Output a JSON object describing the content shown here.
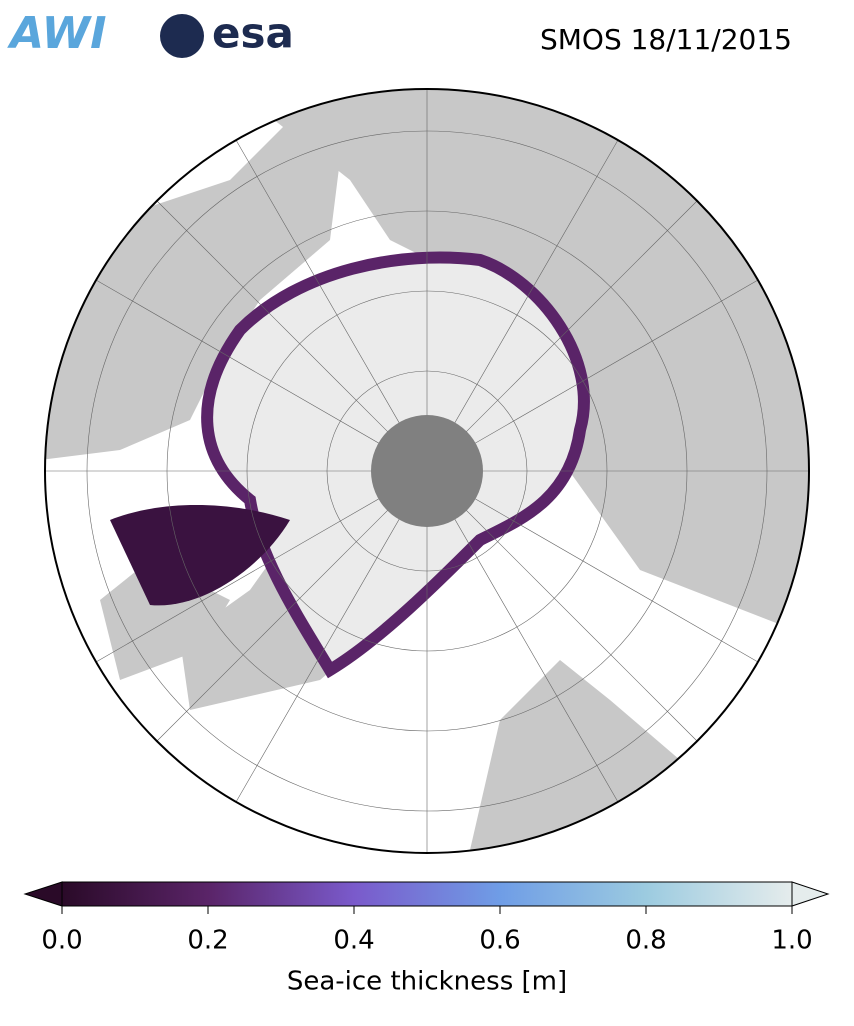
{
  "header": {
    "logos": [
      "AWI",
      "esa"
    ],
    "title": "SMOS 18/11/2015"
  },
  "colorbar": {
    "label": "Sea-ice thickness [m]",
    "lim": [
      0,
      1
    ],
    "ticks": [
      {
        "value": 0,
        "label": "0.0"
      },
      0.2,
      0.4,
      0.6,
      0.8,
      {
        "value": 1,
        "label": "1.0"
      }
    ],
    "colors": [
      "#2a0a28",
      "#5a2468",
      "#7a5acb",
      "#6f9de6",
      "#9ccbe0",
      "#e5ecec"
    ]
  }
}
